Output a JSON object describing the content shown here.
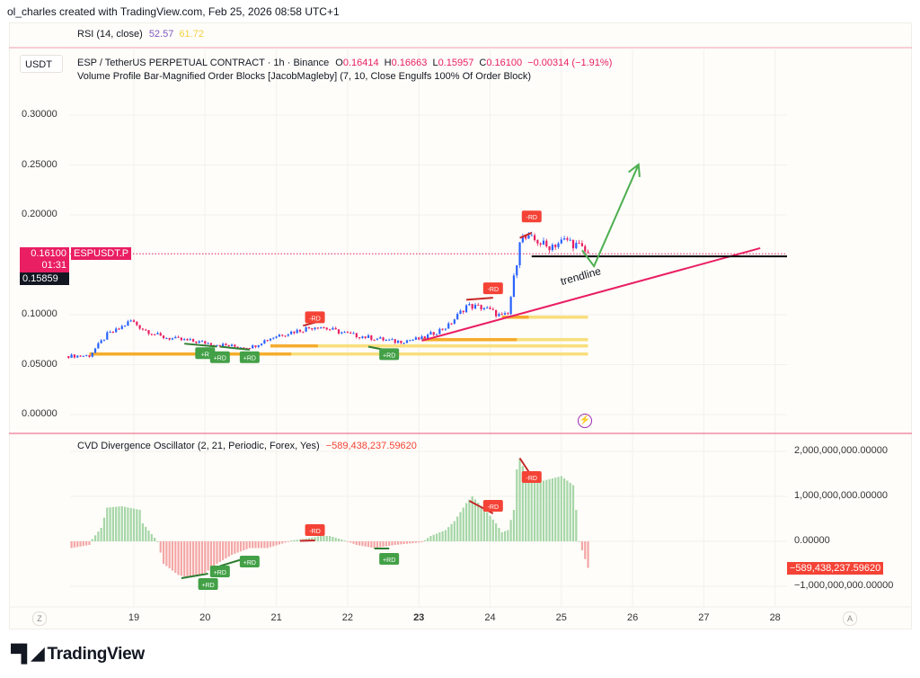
{
  "header": {
    "credit": "ol_charles created with TradingView.com, Feb 25, 2026 08:58 UTC+1"
  },
  "rsi": {
    "label": "RSI (14, close)",
    "value1": "52.57",
    "value2": "61.72",
    "color1": "#7e57c2",
    "color2": "#f5d142"
  },
  "main": {
    "currency_button": "USDT",
    "symbol_line": "ESP / TetherUS PERPETUAL CONTRACT · 1h · Binance",
    "ohlc": {
      "o_label": "O",
      "o": "0.16414",
      "h_label": "H",
      "h": "0.16663",
      "l_label": "L",
      "l": "0.15957",
      "c_label": "C",
      "c": "0.16100",
      "change": "−0.00314 (−1.91%)"
    },
    "indicator_line": "Volume Profile Bar-Magnified Order Blocks [JacobMagleby] (7, 10, Close Engulfs 100% Of Order Block)",
    "price_tag": "0.16100",
    "countdown": "01:31",
    "symbol_tag": "ESPUSDT.P",
    "crosshair_tag": "0.15859",
    "trendline_label": "trendline"
  },
  "oscillator": {
    "label": "CVD Divergence Oscillator (2, 21, Periodic, Forex, Yes)",
    "value": "−589,438,237.59620",
    "value_tag": "−589,438,237.59620"
  },
  "time_axis": {
    "left_button": "Z",
    "right_button": "A",
    "ticks": [
      "19",
      "20",
      "21",
      "22",
      "23",
      "24",
      "25",
      "26",
      "27",
      "28"
    ],
    "bold_tick": "23"
  },
  "footer": {
    "logo_text": "TradingView"
  },
  "colors": {
    "up": "#2962ff",
    "down": "#e91e63",
    "osc_up": "#a5d6a7",
    "osc_down": "#f4a6a6",
    "trendline": "#e91e63",
    "projection": "#4caf50",
    "level": "#000000",
    "ob_yellow": "#f7dc6f",
    "ob_orange": "#f5a623",
    "bull_label": "#43a047",
    "bear_label": "#f44336"
  },
  "chart_data": [
    {
      "type": "candlestick",
      "title": "ESP / TetherUS PERPETUAL CONTRACT · 1h · Binance",
      "y_ticks": [
        "0.30000",
        "0.25000",
        "0.20000",
        "0.10000",
        "0.05000",
        "0.00000"
      ],
      "y_tick_values": [
        0.3,
        0.25,
        0.2,
        0.1,
        0.05,
        0.0
      ],
      "ylim": [
        -0.02,
        0.33
      ],
      "axis_side": "left",
      "x_ticks": [
        "19",
        "20",
        "21",
        "22",
        "23",
        "24",
        "25",
        "26",
        "27",
        "28"
      ],
      "last_price": 0.161,
      "close_path": [
        [
          "2026-02-18T02:00",
          0.0586
        ],
        [
          "2026-02-18T09:00",
          0.059
        ],
        [
          "2026-02-18T15:00",
          0.08
        ],
        [
          "2026-02-18T18:00",
          0.084
        ],
        [
          "2026-02-18T23:00",
          0.094
        ],
        [
          "2026-02-19T03:00",
          0.086
        ],
        [
          "2026-02-19T09:00",
          0.078
        ],
        [
          "2026-02-19T15:00",
          0.075
        ],
        [
          "2026-02-20T00:00",
          0.072
        ],
        [
          "2026-02-20T10:00",
          0.068
        ],
        [
          "2026-02-20T16:00",
          0.068
        ],
        [
          "2026-02-20T19:00",
          0.073
        ],
        [
          "2026-02-21T01:00",
          0.08
        ],
        [
          "2026-02-21T07:00",
          0.084
        ],
        [
          "2026-02-21T14:00",
          0.089
        ],
        [
          "2026-02-21T17:00",
          0.086
        ],
        [
          "2026-02-22T01:00",
          0.08
        ],
        [
          "2026-02-22T10:00",
          0.076
        ],
        [
          "2026-02-22T16:00",
          0.073
        ],
        [
          "2026-02-23T01:00",
          0.076
        ],
        [
          "2026-02-23T10:00",
          0.089
        ],
        [
          "2026-02-23T16:00",
          0.109
        ],
        [
          "2026-02-23T22:00",
          0.107
        ],
        [
          "2026-02-24T04:00",
          0.098
        ],
        [
          "2026-02-24T06:00",
          0.1
        ],
        [
          "2026-02-24T09:00",
          0.154
        ],
        [
          "2026-02-24T10:00",
          0.177
        ],
        [
          "2026-02-24T16:00",
          0.174
        ],
        [
          "2026-02-24T19:00",
          0.168
        ],
        [
          "2026-02-25T02:00",
          0.175
        ],
        [
          "2026-02-25T06:00",
          0.168
        ],
        [
          "2026-02-25T09:00",
          0.161
        ]
      ],
      "order_blocks": [
        {
          "price": 0.0604,
          "from": "2026-02-18T09:00",
          "to": "2026-02-25T09:00",
          "color": "#f7dc6f"
        },
        {
          "price": 0.0604,
          "from": "2026-02-18T09:00",
          "to": "2026-02-21T05:00",
          "color": "#f5a623"
        },
        {
          "price": 0.0685,
          "from": "2026-02-20T22:00",
          "to": "2026-02-25T09:00",
          "color": "#f7dc6f"
        },
        {
          "price": 0.0685,
          "from": "2026-02-20T22:00",
          "to": "2026-02-21T14:00",
          "color": "#f5a623"
        },
        {
          "price": 0.0748,
          "from": "2026-02-23T01:00",
          "to": "2026-02-25T09:00",
          "color": "#f7dc6f"
        },
        {
          "price": 0.0748,
          "from": "2026-02-23T01:00",
          "to": "2026-02-24T09:00",
          "color": "#f5a623"
        },
        {
          "price": 0.0973,
          "from": "2026-02-24T04:00",
          "to": "2026-02-25T09:00",
          "color": "#f7dc6f"
        },
        {
          "price": 0.0973,
          "from": "2026-02-24T04:00",
          "to": "2026-02-24T13:00",
          "color": "#f5a623"
        }
      ],
      "trendline": [
        [
          "2026-02-23T01:00",
          0.0739
        ],
        [
          "2026-02-27T19:00",
          0.1667
        ]
      ],
      "horizontal_level": {
        "price": 0.1585,
        "from": "2026-02-24T14:00"
      },
      "projection_path": [
        [
          "2026-02-25T07:00",
          0.1645
        ],
        [
          "2026-02-25T11:00",
          0.1486
        ],
        [
          "2026-02-26T02:00",
          0.2505
        ]
      ],
      "signals": [
        {
          "text": "-RD",
          "kind": "bear",
          "time": "2026-02-21T13:00",
          "price": 0.097
        },
        {
          "text": "-RD",
          "kind": "bear",
          "time": "2026-02-24T01:00",
          "price": 0.126
        },
        {
          "text": "-RD",
          "kind": "bear",
          "time": "2026-02-24T14:00",
          "price": 0.198
        },
        {
          "text": "+R",
          "kind": "bull",
          "time": "2026-02-20T00:00",
          "price": 0.061
        },
        {
          "text": "+RD",
          "kind": "bull",
          "time": "2026-02-20T05:00",
          "price": 0.057
        },
        {
          "text": "+RD",
          "kind": "bull",
          "time": "2026-02-20T15:00",
          "price": 0.057
        },
        {
          "text": "+RD",
          "kind": "bull",
          "time": "2026-02-22T14:00",
          "price": 0.06
        }
      ],
      "divergence_lines": [
        {
          "kind": "bear",
          "from": [
            "2026-02-21T09:00",
            0.089
          ],
          "to": [
            "2026-02-21T14:00",
            0.093
          ]
        },
        {
          "kind": "bear",
          "from": [
            "2026-02-23T16:00",
            0.115
          ],
          "to": [
            "2026-02-24T01:00",
            0.117
          ]
        },
        {
          "kind": "bear",
          "from": [
            "2026-02-24T10:00",
            0.177
          ],
          "to": [
            "2026-02-24T14:00",
            0.182
          ]
        },
        {
          "kind": "bull",
          "from": [
            "2026-02-19T17:00",
            0.071
          ],
          "to": [
            "2026-02-20T04:00",
            0.068
          ]
        },
        {
          "kind": "bull",
          "from": [
            "2026-02-20T05:00",
            0.068
          ],
          "to": [
            "2026-02-20T15:00",
            0.065
          ]
        },
        {
          "kind": "bull",
          "from": [
            "2026-02-22T07:00",
            0.068
          ],
          "to": [
            "2026-02-22T14:00",
            0.064
          ]
        }
      ]
    },
    {
      "type": "bar",
      "title": "CVD Divergence Oscillator (2, 21, Periodic, Forex, Yes)",
      "y_ticks": [
        "2,000,000,000.00000",
        "1,000,000,000.00000",
        "0.00000",
        "−1,000,000,000.00000"
      ],
      "y_tick_values": [
        2000000000.0,
        1000000000.0,
        0,
        -1000000000.0
      ],
      "axis_side": "right",
      "last_value": -589438237.5962,
      "value_path": [
        [
          "2026-02-18T03:00",
          -150000000.0
        ],
        [
          "2026-02-18T09:00",
          -80000000.0
        ],
        [
          "2026-02-18T10:00",
          50000000.0
        ],
        [
          "2026-02-18T13:00",
          300000000.0
        ],
        [
          "2026-02-18T15:00",
          750000000.0
        ],
        [
          "2026-02-18T20:00",
          780000000.0
        ],
        [
          "2026-02-19T02:00",
          700000000.0
        ],
        [
          "2026-02-19T03:00",
          400000000.0
        ],
        [
          "2026-02-19T08:00",
          0
        ],
        [
          "2026-02-19T10:00",
          -500000000.0
        ],
        [
          "2026-02-19T15:00",
          -750000000.0
        ],
        [
          "2026-02-19T18:00",
          -800000000.0
        ],
        [
          "2026-02-19T23:00",
          -750000000.0
        ],
        [
          "2026-02-20T04:00",
          -500000000.0
        ],
        [
          "2026-02-20T09:00",
          -300000000.0
        ],
        [
          "2026-02-20T15:00",
          -150000000.0
        ],
        [
          "2026-02-20T21:00",
          -150000000.0
        ],
        [
          "2026-02-21T02:00",
          -50000000.0
        ],
        [
          "2026-02-21T05:00",
          20000000.0
        ],
        [
          "2026-02-21T09:00",
          50000000.0
        ],
        [
          "2026-02-21T15:00",
          120000000.0
        ],
        [
          "2026-02-21T18:00",
          120000000.0
        ],
        [
          "2026-02-21T23:00",
          20000000.0
        ],
        [
          "2026-02-22T03:00",
          -80000000.0
        ],
        [
          "2026-02-22T09:00",
          -150000000.0
        ],
        [
          "2026-02-22T16:00",
          -80000000.0
        ],
        [
          "2026-02-23T01:00",
          -20000000.0
        ],
        [
          "2026-02-23T04:00",
          120000000.0
        ],
        [
          "2026-02-23T09:00",
          250000000.0
        ],
        [
          "2026-02-23T12:00",
          450000000.0
        ],
        [
          "2026-02-23T16:00",
          850000000.0
        ],
        [
          "2026-02-23T18:00",
          1000000000.0
        ],
        [
          "2026-02-23T23:00",
          650000000.0
        ],
        [
          "2026-02-24T02:00",
          400000000.0
        ],
        [
          "2026-02-24T04:00",
          200000000.0
        ],
        [
          "2026-02-24T06:00",
          250000000.0
        ],
        [
          "2026-02-24T08:00",
          700000000.0
        ],
        [
          "2026-02-24T09:00",
          1600000000.0
        ],
        [
          "2026-02-24T10:00",
          1850000000.0
        ],
        [
          "2026-02-24T12:00",
          1500000000.0
        ],
        [
          "2026-02-24T18:00",
          1350000000.0
        ],
        [
          "2026-02-25T00:00",
          1450000000.0
        ],
        [
          "2026-02-25T04:00",
          1250000000.0
        ],
        [
          "2026-02-25T05:00",
          700000000.0
        ],
        [
          "2026-02-25T06:00",
          0
        ],
        [
          "2026-02-25T07:00",
          -200000000.0
        ],
        [
          "2026-02-25T09:00",
          -590000000.0
        ]
      ],
      "signals": [
        {
          "text": "-RD",
          "kind": "bear",
          "time": "2026-02-21T13:00",
          "value": 240000000.0
        },
        {
          "text": "-RD",
          "kind": "bear",
          "time": "2026-02-24T01:00",
          "value": 780000000.0
        },
        {
          "text": "-RD",
          "kind": "bear",
          "time": "2026-02-24T14:00",
          "value": 1420000000.0
        },
        {
          "text": "+RD",
          "kind": "bull",
          "time": "2026-02-20T01:00",
          "value": -960000000.0
        },
        {
          "text": "+RD",
          "kind": "bull",
          "time": "2026-02-20T05:00",
          "value": -680000000.0
        },
        {
          "text": "+RD",
          "kind": "bull",
          "time": "2026-02-20T15:00",
          "value": -460000000.0
        },
        {
          "text": "+RD",
          "kind": "bull",
          "time": "2026-02-22T14:00",
          "value": -400000000.0
        }
      ],
      "divergence_lines": [
        {
          "kind": "bull",
          "from": [
            "2026-02-19T16:00",
            -820000000.0
          ],
          "to": [
            "2026-02-20T01:00",
            -720000000.0
          ]
        },
        {
          "kind": "bull",
          "from": [
            "2026-02-20T05:00",
            -550000000.0
          ],
          "to": [
            "2026-02-20T15:00",
            -350000000.0
          ]
        },
        {
          "kind": "bull",
          "from": [
            "2026-02-22T09:00",
            -160000000.0
          ],
          "to": [
            "2026-02-22T14:00",
            -160000000.0
          ]
        },
        {
          "kind": "bear",
          "from": [
            "2026-02-21T08:00",
            10000000.0
          ],
          "to": [
            "2026-02-21T13:00",
            20000000.0
          ]
        },
        {
          "kind": "bear",
          "from": [
            "2026-02-23T17:00",
            900000000.0
          ],
          "to": [
            "2026-02-24T01:00",
            620000000.0
          ]
        },
        {
          "kind": "bear",
          "from": [
            "2026-02-24T10:00",
            1850000000.0
          ],
          "to": [
            "2026-02-24T13:00",
            1550000000.0
          ]
        }
      ]
    }
  ]
}
